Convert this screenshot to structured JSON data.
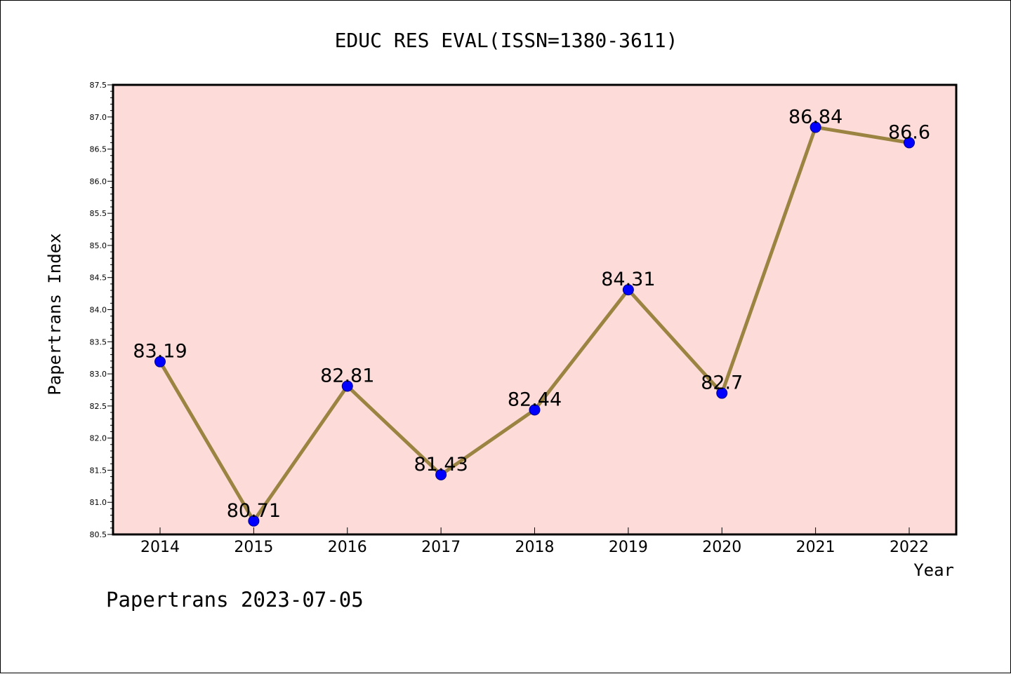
{
  "chart_data": {
    "type": "line",
    "title": "EDUC RES EVAL(ISSN=1380-3611)",
    "xlabel": "Year",
    "ylabel": "Papertrans Index",
    "categories": [
      "2014",
      "2015",
      "2016",
      "2017",
      "2018",
      "2019",
      "2020",
      "2021",
      "2022"
    ],
    "series": [
      {
        "values": [
          83.19,
          80.71,
          82.81,
          81.43,
          82.44,
          84.31,
          82.7,
          86.84,
          86.6
        ],
        "data_labels": [
          "83.19",
          "80.71",
          "82.81",
          "81.43",
          "82.44",
          "84.31",
          "82.7",
          "86.84",
          "86.6"
        ]
      }
    ],
    "ylim": [
      80.5,
      87.5
    ],
    "yticks": [
      "80.5",
      "81.0",
      "81.5",
      "82.0",
      "82.5",
      "83.0",
      "83.5",
      "84.0",
      "84.5",
      "85.0",
      "85.5",
      "86.0",
      "86.5",
      "87.0",
      "87.5"
    ],
    "grid": false,
    "legend": "none",
    "colors": {
      "plot_background": "#fddbd8",
      "line": "#9b8442",
      "marker": "#0000ff",
      "marker_edge": "#00008b",
      "axis": "#000000"
    }
  },
  "footer": {
    "watermark": "Papertrans 2023-07-05"
  }
}
